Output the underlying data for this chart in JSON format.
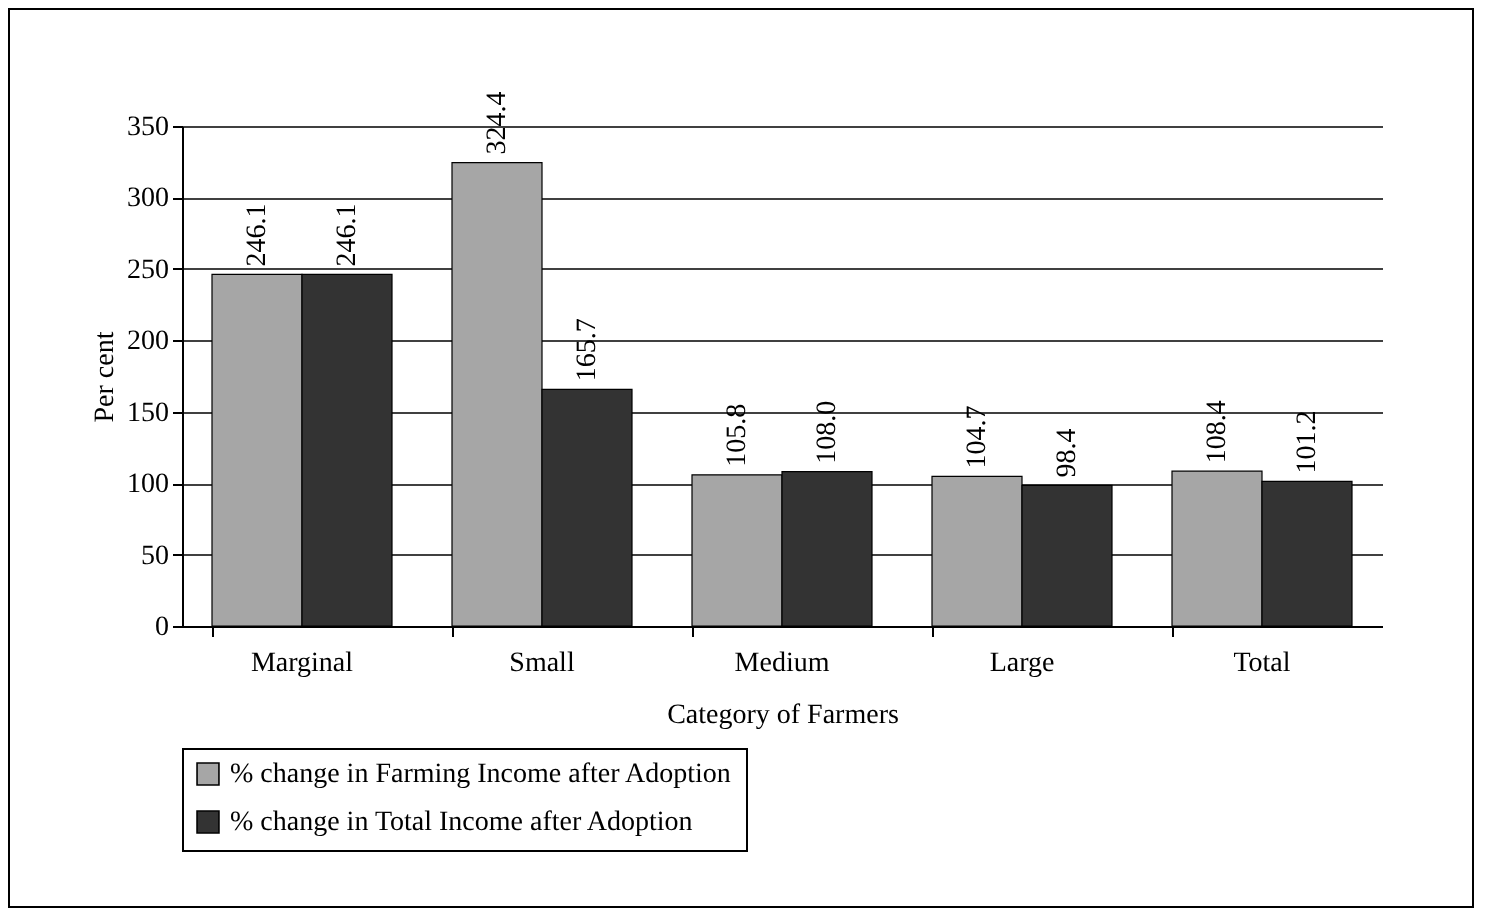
{
  "chart_data": {
    "type": "bar",
    "xlabel": "Category of Farmers",
    "ylabel": "Per cent",
    "categories": [
      "Marginal",
      "Small",
      "Medium",
      "Large",
      "Total"
    ],
    "series": [
      {
        "name": "% change in Farming Income after Adoption",
        "color": "#a6a6a6",
        "values": [
          246.1,
          324.4,
          105.8,
          104.7,
          108.4
        ],
        "value_labels": [
          "246.1",
          "324.4",
          "105.8",
          "104.7",
          "108.4"
        ]
      },
      {
        "name": "% change in Total Income after Adoption",
        "color": "#333333",
        "values": [
          246.1,
          165.7,
          108.0,
          98.4,
          101.2
        ],
        "value_labels": [
          "246.1",
          "165.7",
          "108.0",
          "98.4",
          "101.2"
        ]
      }
    ],
    "ylim": [
      0,
      350
    ],
    "yticks": [
      0,
      50,
      100,
      150,
      200,
      250,
      300,
      350
    ],
    "grid": "y",
    "legend": "bottom"
  }
}
